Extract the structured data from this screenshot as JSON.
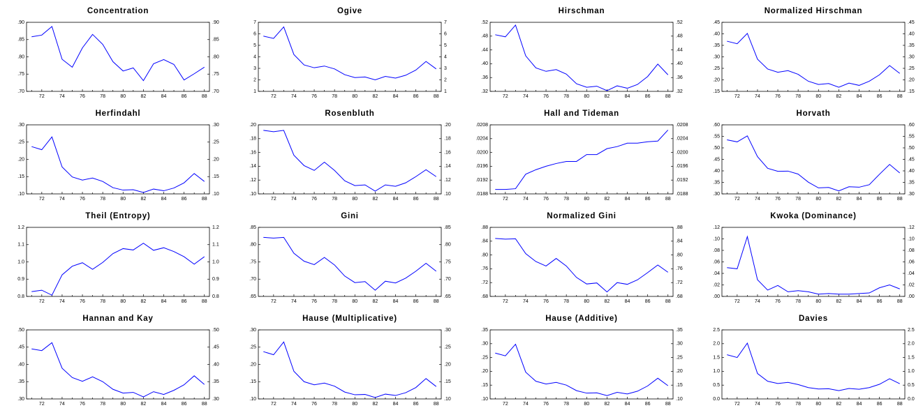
{
  "chart_data": [
    {
      "type": "line",
      "title": "Concentration",
      "color": "#0000ff",
      "categories": [
        null,
        "72",
        null,
        "74",
        null,
        "76",
        null,
        "78",
        null,
        "80",
        null,
        "82",
        null,
        "84",
        null,
        "86",
        null,
        "88"
      ],
      "values": [
        0.858,
        0.863,
        0.888,
        0.793,
        0.77,
        0.826,
        0.865,
        0.836,
        0.786,
        0.759,
        0.768,
        0.731,
        0.78,
        0.792,
        0.778,
        0.733,
        0.751,
        0.77
      ],
      "ylim": [
        0.7,
        0.9
      ],
      "yticks": [
        {
          "value": 0.7,
          "label": ".70"
        },
        {
          "value": 0.75,
          "label": ".75"
        },
        {
          "value": 0.8,
          "label": ".80"
        },
        {
          "value": 0.85,
          "label": ".85"
        },
        {
          "value": 0.9,
          "label": ".90"
        }
      ]
    },
    {
      "type": "line",
      "title": "Ogive",
      "color": "#0000ff",
      "categories": [
        null,
        "72",
        null,
        "74",
        null,
        "76",
        null,
        "78",
        null,
        "80",
        null,
        "82",
        null,
        "84",
        null,
        "86",
        null,
        "88"
      ],
      "values": [
        5.8,
        5.6,
        6.6,
        4.2,
        3.3,
        3.05,
        3.2,
        2.95,
        2.45,
        2.2,
        2.25,
        2.0,
        2.3,
        2.15,
        2.4,
        2.85,
        3.6,
        2.95
      ],
      "ylim": [
        1,
        7
      ],
      "yticks": [
        1,
        2,
        3,
        4,
        5,
        6,
        7
      ]
    },
    {
      "type": "line",
      "title": "Hirschman",
      "color": "#0000ff",
      "categories": [
        null,
        "72",
        null,
        "74",
        null,
        "76",
        null,
        "78",
        null,
        "80",
        null,
        "82",
        null,
        "84",
        null,
        "86",
        null,
        "88"
      ],
      "values": [
        0.484,
        0.478,
        0.512,
        0.423,
        0.388,
        0.378,
        0.383,
        0.37,
        0.342,
        0.332,
        0.335,
        0.322,
        0.336,
        0.329,
        0.34,
        0.363,
        0.399,
        0.368
      ],
      "ylim": [
        0.32,
        0.52
      ],
      "yticks": [
        {
          "value": 0.32,
          "label": ".32"
        },
        {
          "value": 0.36,
          "label": ".36"
        },
        {
          "value": 0.4,
          "label": ".40"
        },
        {
          "value": 0.44,
          "label": ".44"
        },
        {
          "value": 0.48,
          "label": ".48"
        },
        {
          "value": 0.52,
          "label": ".52"
        }
      ]
    },
    {
      "type": "line",
      "title": "Normalized Hirschman",
      "color": "#0000ff",
      "categories": [
        null,
        "72",
        null,
        "74",
        null,
        "76",
        null,
        "78",
        null,
        "80",
        null,
        "82",
        null,
        "84",
        null,
        "86",
        null,
        "88"
      ],
      "values": [
        0.368,
        0.357,
        0.402,
        0.29,
        0.247,
        0.233,
        0.24,
        0.224,
        0.194,
        0.18,
        0.184,
        0.168,
        0.186,
        0.176,
        0.194,
        0.222,
        0.262,
        0.228
      ],
      "ylim": [
        0.15,
        0.45
      ],
      "yticks": [
        {
          "value": 0.15,
          "label": ".15"
        },
        {
          "value": 0.2,
          "label": ".20"
        },
        {
          "value": 0.25,
          "label": ".25"
        },
        {
          "value": 0.3,
          "label": ".30"
        },
        {
          "value": 0.35,
          "label": ".35"
        },
        {
          "value": 0.4,
          "label": ".40"
        },
        {
          "value": 0.45,
          "label": ".45"
        }
      ]
    },
    {
      "type": "line",
      "title": "Herfindahl",
      "color": "#0000ff",
      "categories": [
        null,
        "72",
        null,
        "74",
        null,
        "76",
        null,
        "78",
        null,
        "80",
        null,
        "82",
        null,
        "84",
        null,
        "86",
        null,
        "88"
      ],
      "values": [
        0.237,
        0.228,
        0.265,
        0.178,
        0.149,
        0.14,
        0.146,
        0.136,
        0.118,
        0.111,
        0.112,
        0.104,
        0.114,
        0.109,
        0.117,
        0.132,
        0.159,
        0.136
      ],
      "ylim": [
        0.1,
        0.3
      ],
      "yticks": [
        {
          "value": 0.1,
          "label": ".10"
        },
        {
          "value": 0.15,
          "label": ".15"
        },
        {
          "value": 0.2,
          "label": ".20"
        },
        {
          "value": 0.25,
          "label": ".25"
        },
        {
          "value": 0.3,
          "label": ".30"
        }
      ]
    },
    {
      "type": "line",
      "title": "Rosenbluth",
      "color": "#0000ff",
      "categories": [
        null,
        "72",
        null,
        "74",
        null,
        "76",
        null,
        "78",
        null,
        "80",
        null,
        "82",
        null,
        "84",
        null,
        "86",
        null,
        "88"
      ],
      "values": [
        0.192,
        0.19,
        0.192,
        0.156,
        0.141,
        0.134,
        0.146,
        0.134,
        0.119,
        0.112,
        0.113,
        0.104,
        0.113,
        0.111,
        0.116,
        0.125,
        0.135,
        0.125
      ],
      "ylim": [
        0.1,
        0.2
      ],
      "yticks": [
        {
          "value": 0.1,
          "label": ".10"
        },
        {
          "value": 0.12,
          "label": ".12"
        },
        {
          "value": 0.14,
          "label": ".14"
        },
        {
          "value": 0.16,
          "label": ".16"
        },
        {
          "value": 0.18,
          "label": ".18"
        },
        {
          "value": 0.2,
          "label": ".20"
        }
      ]
    },
    {
      "type": "line",
      "title": "Hall and Tideman",
      "color": "#0000ff",
      "categories": [
        null,
        "72",
        null,
        "74",
        null,
        "76",
        null,
        "78",
        null,
        "80",
        null,
        "82",
        null,
        "84",
        null,
        "86",
        null,
        "88"
      ],
      "values": [
        0.01893,
        0.01893,
        0.01895,
        0.01937,
        0.0195,
        0.0196,
        0.01968,
        0.01974,
        0.01974,
        0.01994,
        0.01994,
        0.02011,
        0.02017,
        0.02027,
        0.02027,
        0.02031,
        0.02033,
        0.02065
      ],
      "ylim": [
        0.0188,
        0.0208
      ],
      "yticks": [
        {
          "value": 0.0188,
          "label": ".0188"
        },
        {
          "value": 0.0192,
          "label": ".0192"
        },
        {
          "value": 0.0196,
          "label": ".0196"
        },
        {
          "value": 0.02,
          "label": ".0200"
        },
        {
          "value": 0.0204,
          "label": ".0204"
        },
        {
          "value": 0.0208,
          "label": ".0208"
        }
      ]
    },
    {
      "type": "line",
      "title": "Horvath",
      "color": "#0000ff",
      "categories": [
        null,
        "72",
        null,
        "74",
        null,
        "76",
        null,
        "78",
        null,
        "80",
        null,
        "82",
        null,
        "84",
        null,
        "86",
        null,
        "88"
      ],
      "values": [
        0.535,
        0.526,
        0.552,
        0.462,
        0.411,
        0.398,
        0.399,
        0.386,
        0.351,
        0.326,
        0.328,
        0.313,
        0.331,
        0.329,
        0.34,
        0.385,
        0.428,
        0.391
      ],
      "ylim": [
        0.3,
        0.6
      ],
      "yticks": [
        {
          "value": 0.3,
          "label": ".30"
        },
        {
          "value": 0.35,
          "label": ".35"
        },
        {
          "value": 0.4,
          "label": ".40"
        },
        {
          "value": 0.45,
          "label": ".45"
        },
        {
          "value": 0.5,
          "label": ".50"
        },
        {
          "value": 0.55,
          "label": ".55"
        },
        {
          "value": 0.6,
          "label": ".60"
        }
      ]
    },
    {
      "type": "line",
      "title": "Theil (Entropy)",
      "color": "#0000ff",
      "categories": [
        null,
        "72",
        null,
        "74",
        null,
        "76",
        null,
        "78",
        null,
        "80",
        null,
        "82",
        null,
        "84",
        null,
        "86",
        null,
        "88"
      ],
      "values": [
        0.828,
        0.836,
        0.807,
        0.925,
        0.975,
        0.995,
        0.957,
        0.997,
        1.048,
        1.077,
        1.069,
        1.108,
        1.067,
        1.082,
        1.06,
        1.03,
        0.987,
        1.03
      ],
      "ylim": [
        0.8,
        1.2
      ],
      "yticks": [
        0.8,
        0.9,
        {
          "value": 1.0,
          "label": "1.0"
        },
        1.1,
        1.2
      ]
    },
    {
      "type": "line",
      "title": "Gini",
      "color": "#0000ff",
      "categories": [
        null,
        "72",
        null,
        "74",
        null,
        "76",
        null,
        "78",
        null,
        "80",
        null,
        "82",
        null,
        "84",
        null,
        "86",
        null,
        "88"
      ],
      "values": [
        0.821,
        0.819,
        0.821,
        0.775,
        0.752,
        0.742,
        0.763,
        0.741,
        0.709,
        0.69,
        0.693,
        0.668,
        0.694,
        0.689,
        0.703,
        0.723,
        0.746,
        0.723
      ],
      "ylim": [
        0.65,
        0.85
      ],
      "yticks": [
        {
          "value": 0.65,
          "label": ".65"
        },
        {
          "value": 0.7,
          "label": ".70"
        },
        {
          "value": 0.75,
          "label": ".75"
        },
        {
          "value": 0.8,
          "label": ".80"
        },
        {
          "value": 0.85,
          "label": ".85"
        }
      ]
    },
    {
      "type": "line",
      "title": "Normalized Gini",
      "color": "#0000ff",
      "categories": [
        null,
        "72",
        null,
        "74",
        null,
        "76",
        null,
        "78",
        null,
        "80",
        null,
        "82",
        null,
        "84",
        null,
        "86",
        null,
        "88"
      ],
      "values": [
        0.848,
        0.846,
        0.847,
        0.804,
        0.781,
        0.768,
        0.79,
        0.768,
        0.735,
        0.716,
        0.719,
        0.693,
        0.72,
        0.715,
        0.728,
        0.749,
        0.771,
        0.75
      ],
      "ylim": [
        0.68,
        0.88
      ],
      "yticks": [
        {
          "value": 0.68,
          "label": ".68"
        },
        {
          "value": 0.72,
          "label": ".72"
        },
        {
          "value": 0.76,
          "label": ".76"
        },
        {
          "value": 0.8,
          "label": ".80"
        },
        {
          "value": 0.84,
          "label": ".84"
        },
        {
          "value": 0.88,
          "label": ".88"
        }
      ]
    },
    {
      "type": "line",
      "title": "Kwoka (Dominance)",
      "color": "#0000ff",
      "categories": [
        null,
        "72",
        null,
        "74",
        null,
        "76",
        null,
        "78",
        null,
        "80",
        null,
        "82",
        null,
        "84",
        null,
        "86",
        null,
        "88"
      ],
      "values": [
        0.05,
        0.048,
        0.104,
        0.029,
        0.011,
        0.019,
        0.008,
        0.01,
        0.008,
        0.004,
        0.005,
        0.004,
        0.004,
        0.005,
        0.006,
        0.015,
        0.02,
        0.013
      ],
      "ylim": [
        0.0,
        0.12
      ],
      "yticks": [
        {
          "value": 0.0,
          "label": ".00"
        },
        {
          "value": 0.02,
          "label": ".02"
        },
        {
          "value": 0.04,
          "label": ".04"
        },
        {
          "value": 0.06,
          "label": ".06"
        },
        {
          "value": 0.08,
          "label": ".08"
        },
        {
          "value": 0.1,
          "label": ".10"
        },
        {
          "value": 0.12,
          "label": ".12"
        }
      ]
    },
    {
      "type": "line",
      "title": "Hannan and Kay",
      "color": "#0000ff",
      "categories": [
        null,
        "72",
        null,
        "74",
        null,
        "76",
        null,
        "78",
        null,
        "80",
        null,
        "82",
        null,
        "84",
        null,
        "86",
        null,
        "88"
      ],
      "values": [
        0.445,
        0.44,
        0.463,
        0.389,
        0.362,
        0.351,
        0.364,
        0.35,
        0.328,
        0.317,
        0.319,
        0.306,
        0.321,
        0.313,
        0.325,
        0.341,
        0.367,
        0.342
      ],
      "ylim": [
        0.3,
        0.5
      ],
      "yticks": [
        {
          "value": 0.3,
          "label": ".30"
        },
        {
          "value": 0.35,
          "label": ".35"
        },
        {
          "value": 0.4,
          "label": ".40"
        },
        {
          "value": 0.45,
          "label": ".45"
        },
        {
          "value": 0.5,
          "label": ".50"
        }
      ]
    },
    {
      "type": "line",
      "title": "Hause (Multiplicative)",
      "color": "#0000ff",
      "categories": [
        null,
        "72",
        null,
        "74",
        null,
        "76",
        null,
        "78",
        null,
        "80",
        null,
        "82",
        null,
        "84",
        null,
        "86",
        null,
        "88"
      ],
      "values": [
        0.237,
        0.228,
        0.265,
        0.18,
        0.15,
        0.141,
        0.146,
        0.137,
        0.12,
        0.112,
        0.113,
        0.104,
        0.114,
        0.11,
        0.118,
        0.133,
        0.159,
        0.136
      ],
      "ylim": [
        0.1,
        0.3
      ],
      "yticks": [
        {
          "value": 0.1,
          "label": ".10"
        },
        {
          "value": 0.15,
          "label": ".15"
        },
        {
          "value": 0.2,
          "label": ".20"
        },
        {
          "value": 0.25,
          "label": ".25"
        },
        {
          "value": 0.3,
          "label": ".30"
        }
      ]
    },
    {
      "type": "line",
      "title": "Hause (Additive)",
      "color": "#0000ff",
      "categories": [
        null,
        "72",
        null,
        "74",
        null,
        "76",
        null,
        "78",
        null,
        "80",
        null,
        "82",
        null,
        "84",
        null,
        "86",
        null,
        "88"
      ],
      "values": [
        0.266,
        0.256,
        0.298,
        0.197,
        0.164,
        0.154,
        0.16,
        0.15,
        0.13,
        0.121,
        0.122,
        0.112,
        0.124,
        0.118,
        0.128,
        0.147,
        0.175,
        0.148
      ],
      "ylim": [
        0.1,
        0.35
      ],
      "yticks": [
        {
          "value": 0.1,
          "label": ".10"
        },
        {
          "value": 0.15,
          "label": ".15"
        },
        {
          "value": 0.2,
          "label": ".20"
        },
        {
          "value": 0.25,
          "label": ".25"
        },
        {
          "value": 0.3,
          "label": ".30"
        },
        {
          "value": 0.35,
          "label": ".35"
        }
      ]
    },
    {
      "type": "line",
      "title": "Davies",
      "color": "#0000ff",
      "categories": [
        null,
        "72",
        null,
        "74",
        null,
        "76",
        null,
        "78",
        null,
        "80",
        null,
        "82",
        null,
        "84",
        null,
        "86",
        null,
        "88"
      ],
      "values": [
        1.6,
        1.5,
        2.02,
        0.92,
        0.64,
        0.56,
        0.6,
        0.52,
        0.41,
        0.36,
        0.37,
        0.3,
        0.38,
        0.35,
        0.41,
        0.53,
        0.73,
        0.55
      ],
      "ylim": [
        0,
        2.5
      ],
      "yticks": [
        {
          "value": 0,
          "label": "0.0"
        },
        0.5,
        {
          "value": 1.0,
          "label": "1.0"
        },
        1.5,
        {
          "value": 2.0,
          "label": "2.0"
        },
        2.5
      ]
    }
  ]
}
